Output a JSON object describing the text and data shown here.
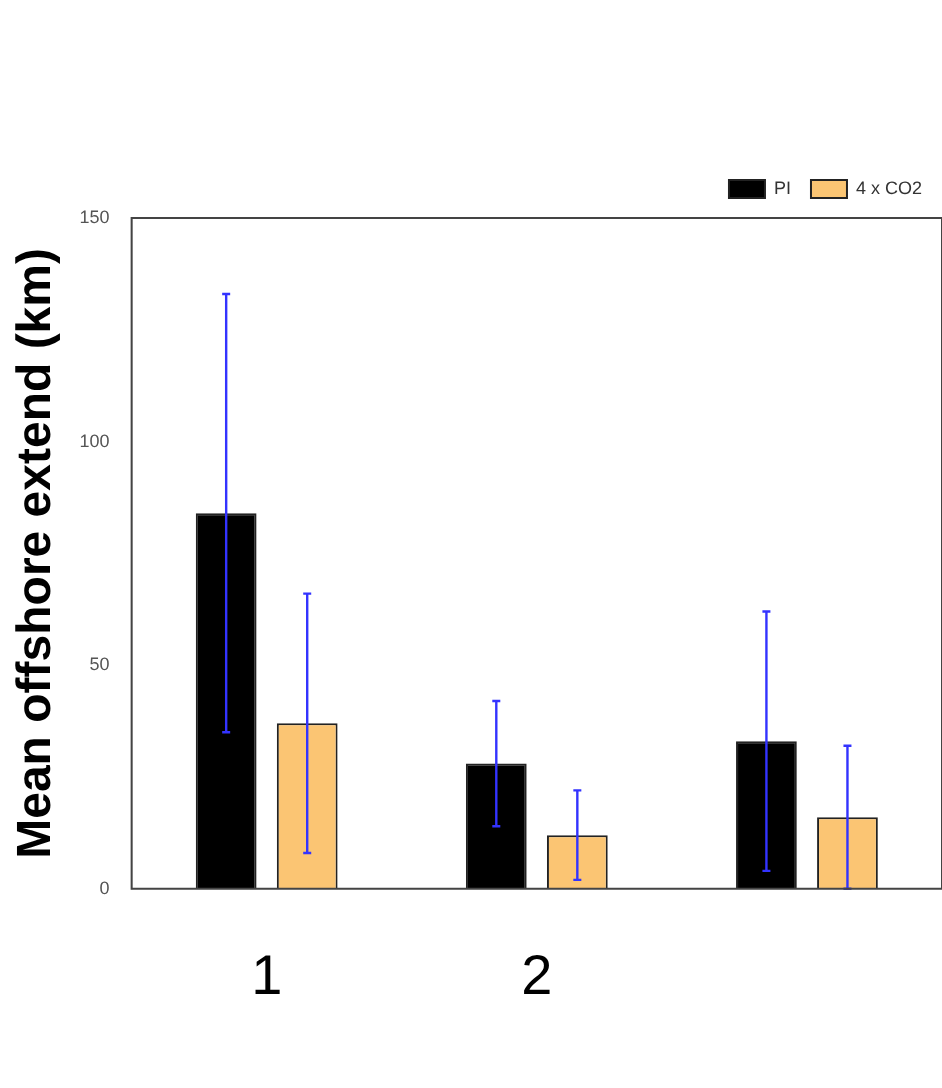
{
  "chart_data": {
    "type": "bar",
    "ylabel": "Mean offshore extend (km)",
    "categories": [
      "1",
      "2",
      null
    ],
    "series": [
      {
        "name": "PI",
        "color": "#000000",
        "values": [
          84,
          28,
          33
        ],
        "errors": [
          49,
          14,
          29
        ]
      },
      {
        "name": "4 x CO2",
        "color": "#fbc573",
        "values": [
          37,
          12,
          16
        ],
        "errors": [
          29,
          10,
          16
        ]
      }
    ],
    "ylim": [
      0,
      150
    ],
    "yticks": [
      0,
      50,
      100,
      150
    ],
    "grid": false,
    "legend": "top right"
  }
}
